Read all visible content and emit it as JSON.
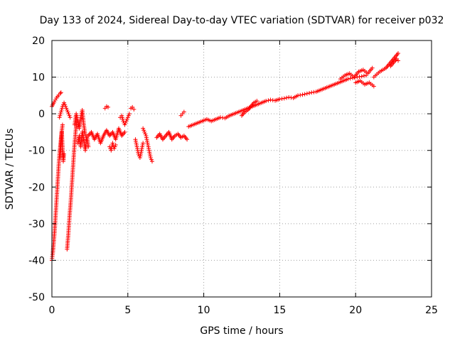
{
  "chart_data": {
    "type": "scatter",
    "title": "Day 133 of 2024, Sidereal Day-to-day VTEC variation (SDTVAR) for receiver p032",
    "xlabel": "GPS time / hours",
    "ylabel": "SDTVAR / TECUs",
    "xlim": [
      0,
      25
    ],
    "ylim": [
      -50,
      20
    ],
    "xticks": [
      "0",
      "5",
      "10",
      "15",
      "20",
      "25"
    ],
    "yticks": [
      "20",
      "10",
      "0",
      "-10",
      "-20",
      "-30",
      "-40",
      "-50"
    ],
    "grid": true,
    "marker": "plus",
    "color": "#ff0000",
    "series": [
      {
        "name": "SDTVAR",
        "segments": [
          {
            "x": [
              0.0,
              0.15,
              0.3,
              0.45,
              0.55,
              0.6
            ],
            "y": [
              2,
              3.2,
              4.3,
              5.1,
              5.6,
              5.8
            ]
          },
          {
            "x": [
              0.0,
              0.06,
              0.12,
              0.18,
              0.24,
              0.3,
              0.36,
              0.42,
              0.48,
              0.55,
              0.62,
              0.7
            ],
            "y": [
              -40,
              -38,
              -35,
              -32,
              -28,
              -24,
              -20,
              -16,
              -12,
              -9,
              -6,
              -3
            ]
          },
          {
            "x": [
              0.5,
              0.6,
              0.7,
              0.8,
              0.9,
              1.0,
              1.1,
              1.2
            ],
            "y": [
              -1,
              0.5,
              2,
              3,
              2,
              1,
              0,
              -1
            ]
          },
          {
            "x": [
              0.55,
              0.6,
              0.65,
              0.7,
              0.75,
              0.8
            ],
            "y": [
              -12,
              -8,
              -5,
              -9,
              -13,
              -11
            ]
          },
          {
            "x": [
              1.0,
              1.08,
              1.16,
              1.24,
              1.32,
              1.4,
              1.48,
              1.56,
              1.64
            ],
            "y": [
              -37,
              -33,
              -28,
              -24,
              -19,
              -14,
              -9,
              -5,
              -2
            ]
          },
          {
            "x": [
              1.5,
              1.6,
              1.7,
              1.8,
              1.9,
              2.0,
              2.1,
              2.2
            ],
            "y": [
              -3,
              0,
              -2,
              -4,
              -1,
              1,
              -3,
              -6
            ]
          },
          {
            "x": [
              1.7,
              1.8,
              1.9,
              2.0,
              2.1,
              2.2,
              2.3,
              2.4
            ],
            "y": [
              -8,
              -6,
              -9,
              -5,
              -7,
              -10,
              -6,
              -9
            ]
          },
          {
            "x": [
              2.4,
              2.6,
              2.8,
              3.0,
              3.2,
              3.4,
              3.6,
              3.8,
              4.0,
              4.2,
              4.4,
              4.6,
              4.8
            ],
            "y": [
              -6,
              -5,
              -7,
              -5.5,
              -8,
              -6,
              -4.5,
              -6,
              -5,
              -7,
              -4,
              -6,
              -5
            ]
          },
          {
            "x": [
              3.5,
              3.6,
              3.7
            ],
            "y": [
              1.5,
              2,
              1.8
            ]
          },
          {
            "x": [
              3.8,
              3.9,
              4.0,
              4.1,
              4.2
            ],
            "y": [
              -9,
              -10,
              -8,
              -9.5,
              -8.5
            ]
          },
          {
            "x": [
              4.5,
              4.6,
              4.7,
              4.8,
              4.9,
              5.0,
              5.1
            ],
            "y": [
              -1,
              -0.5,
              -2,
              -3,
              -2,
              -1,
              0
            ]
          },
          {
            "x": [
              5.2,
              5.3,
              5.4
            ],
            "y": [
              1.5,
              1.8,
              1.2
            ]
          },
          {
            "x": [
              5.5,
              5.6,
              5.7,
              5.8,
              5.9,
              6.0
            ],
            "y": [
              -7,
              -9,
              -11,
              -12,
              -10,
              -8
            ]
          },
          {
            "x": [
              6.0,
              6.1,
              6.2,
              6.3,
              6.4,
              6.5,
              6.6
            ],
            "y": [
              -4,
              -5,
              -6,
              -8,
              -10,
              -12,
              -13
            ]
          },
          {
            "x": [
              6.9,
              7.1,
              7.3,
              7.5,
              7.7,
              7.9,
              8.1,
              8.3,
              8.5,
              8.7,
              8.9
            ],
            "y": [
              -6.5,
              -5.5,
              -7,
              -6,
              -5,
              -7,
              -6,
              -5.5,
              -6.5,
              -6,
              -7
            ]
          },
          {
            "x": [
              8.5,
              8.6,
              8.7
            ],
            "y": [
              -0.5,
              0,
              0.5
            ]
          },
          {
            "x": [
              9.0,
              9.3,
              9.6,
              9.9,
              10.2,
              10.5,
              10.8,
              11.1,
              11.4,
              11.7,
              12.0,
              12.3,
              12.6,
              12.9,
              13.2,
              13.5,
              13.8,
              14.1,
              14.4,
              14.7,
              15.0,
              15.3,
              15.6,
              15.9,
              16.2,
              16.5,
              16.8,
              17.1,
              17.4,
              17.7,
              18.0,
              18.3,
              18.6,
              18.9,
              19.2,
              19.5,
              19.8,
              20.1,
              20.4,
              20.7
            ],
            "y": [
              -3.5,
              -3,
              -2.5,
              -2,
              -1.5,
              -2,
              -1.5,
              -1,
              -1.2,
              -0.5,
              0,
              0.5,
              1,
              1.5,
              2,
              2.5,
              3,
              3.5,
              3.8,
              3.6,
              4,
              4.2,
              4.5,
              4.3,
              5,
              5.2,
              5.5,
              5.8,
              6,
              6.5,
              7,
              7.5,
              8,
              8.5,
              9,
              9.5,
              9.8,
              10,
              10.2,
              10.5
            ]
          },
          {
            "x": [
              12.5,
              12.7,
              12.9,
              13.1,
              13.3,
              13.5
            ],
            "y": [
              -0.5,
              0.5,
              1,
              2,
              3,
              3.5
            ]
          },
          {
            "x": [
              19.0,
              19.3,
              19.6,
              19.9,
              20.2,
              20.5,
              20.8,
              21.1
            ],
            "y": [
              9.5,
              10.5,
              11,
              10,
              11.5,
              12,
              11,
              12.5
            ]
          },
          {
            "x": [
              20.0,
              20.3,
              20.6,
              20.9,
              21.2
            ],
            "y": [
              8.5,
              9,
              8,
              8.5,
              7.5
            ]
          },
          {
            "x": [
              21.2,
              21.4,
              21.6,
              21.8,
              22.0,
              22.2,
              22.4,
              22.6,
              22.8
            ],
            "y": [
              10,
              10.8,
              11.5,
              12,
              12.5,
              13.5,
              14.5,
              15.5,
              16.5
            ]
          },
          {
            "x": [
              22.3,
              22.5,
              22.7,
              22.8
            ],
            "y": [
              13,
              14,
              15,
              14.5
            ]
          }
        ]
      }
    ]
  }
}
